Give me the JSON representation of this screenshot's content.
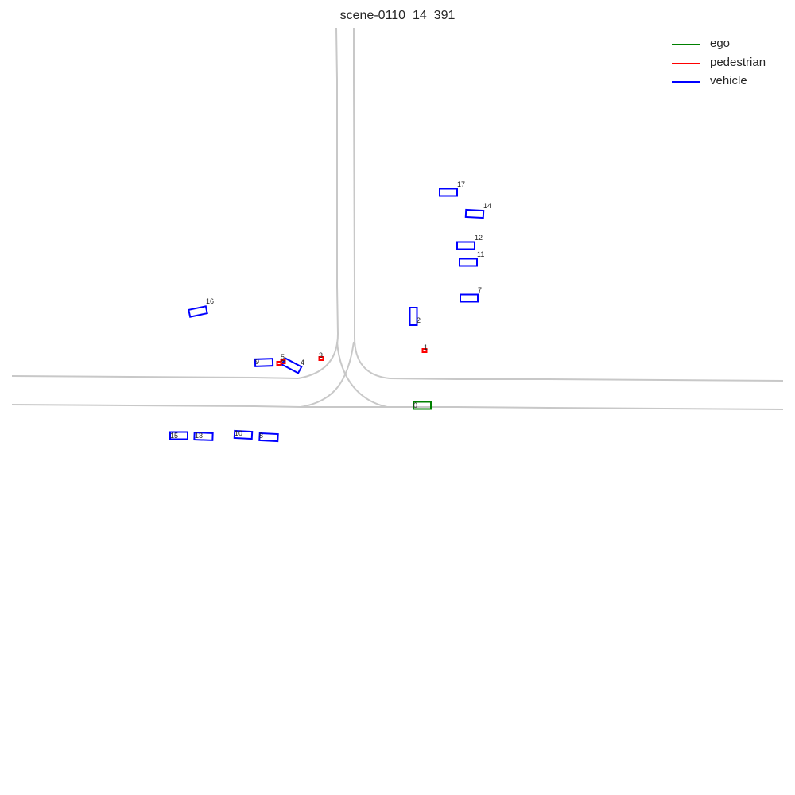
{
  "title": "scene-0110_14_391",
  "legend": [
    {
      "label": "ego",
      "color": "#008000"
    },
    {
      "label": "pedestrian",
      "color": "#ff0000"
    },
    {
      "label": "vehicle",
      "color": "#0000ff"
    }
  ],
  "agents": [
    {
      "id": "0",
      "type": "ego"
    },
    {
      "id": "1",
      "type": "pedestrian"
    },
    {
      "id": "2",
      "type": "vehicle"
    },
    {
      "id": "3",
      "type": "pedestrian"
    },
    {
      "id": "4",
      "type": "vehicle"
    },
    {
      "id": "5",
      "type": "pedestrian"
    },
    {
      "id": "6",
      "type": "pedestrian"
    },
    {
      "id": "7",
      "type": "vehicle"
    },
    {
      "id": "8",
      "type": "vehicle"
    },
    {
      "id": "9",
      "type": "vehicle"
    },
    {
      "id": "10",
      "type": "vehicle"
    },
    {
      "id": "11",
      "type": "vehicle"
    },
    {
      "id": "12",
      "type": "vehicle"
    },
    {
      "id": "13",
      "type": "vehicle"
    },
    {
      "id": "14",
      "type": "vehicle"
    },
    {
      "id": "15",
      "type": "vehicle"
    },
    {
      "id": "16",
      "type": "vehicle"
    },
    {
      "id": "17",
      "type": "vehicle"
    }
  ]
}
